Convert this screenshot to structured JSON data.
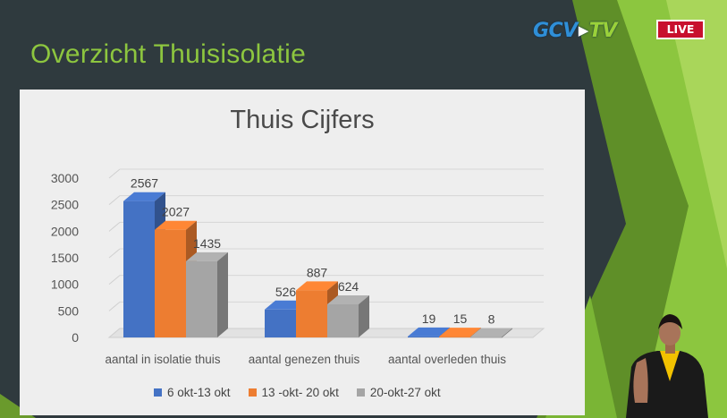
{
  "slide": {
    "title": "Overzicht Thuisisolatie"
  },
  "broadcast": {
    "logo_left": "GCV",
    "logo_right": "TV",
    "live_label": "LIVE",
    "live_color": "#c8102e",
    "logo_color": "#2f8fd8",
    "accent_green": "#8dc63f"
  },
  "chart_data": {
    "type": "bar",
    "title": "Thuis Cijfers",
    "xlabel": "",
    "ylabel": "",
    "ylim": [
      0,
      3000
    ],
    "yticks": [
      0,
      500,
      1000,
      1500,
      2000,
      2500,
      3000
    ],
    "grid": true,
    "style": "3d-clustered-column",
    "legend_position": "bottom",
    "categories": [
      "aantal in isolatie thuis",
      "aantal genezen thuis",
      "aantal overleden thuis"
    ],
    "series": [
      {
        "name": "6 okt-13 okt",
        "color": "#4472c4",
        "values": [
          2567,
          526,
          19
        ]
      },
      {
        "name": "13 -okt- 20 okt",
        "color": "#ed7d31",
        "values": [
          2027,
          887,
          15
        ]
      },
      {
        "name": "20-okt-27 okt",
        "color": "#a5a5a5",
        "values": [
          1435,
          624,
          8
        ]
      }
    ]
  }
}
